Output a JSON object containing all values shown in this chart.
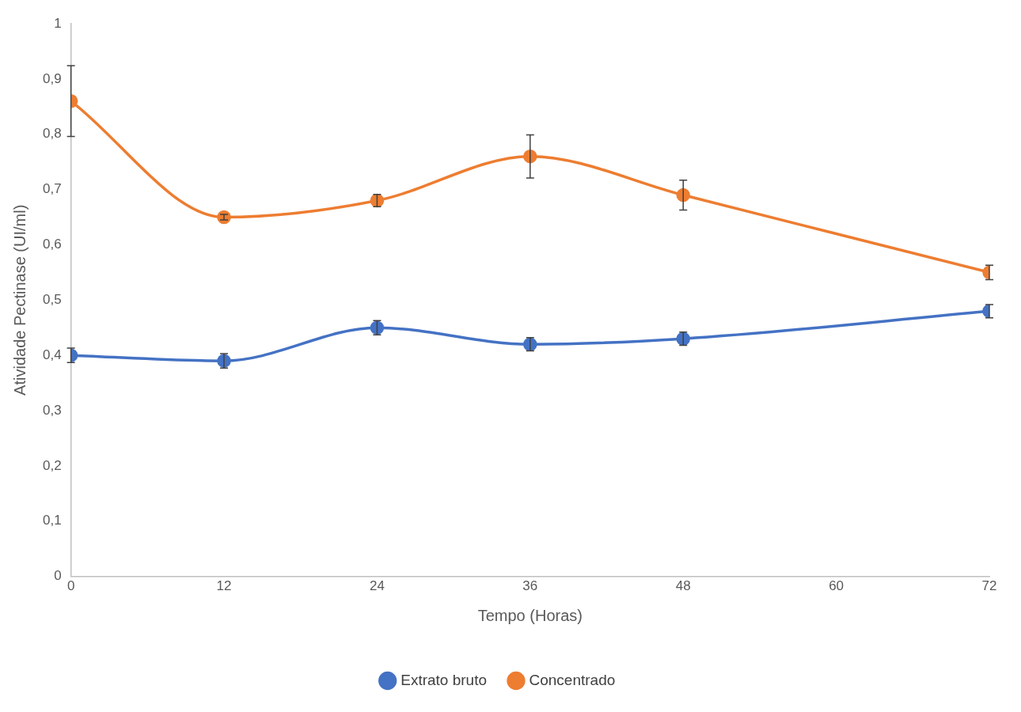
{
  "chart_data": {
    "type": "line",
    "xlabel": "Tempo (Horas)",
    "ylabel": "Atividade Pectinase (UI/ml)",
    "x": [
      0,
      12,
      24,
      36,
      48,
      72
    ],
    "series": [
      {
        "name": "Extrato bruto",
        "color": "#4472c4",
        "values": [
          0.4,
          0.39,
          0.45,
          0.42,
          0.43,
          0.48
        ],
        "errors": [
          0.013,
          0.013,
          0.013,
          0.012,
          0.012,
          0.012
        ]
      },
      {
        "name": "Concentrado",
        "color": "#ed7d31",
        "values": [
          0.86,
          0.65,
          0.68,
          0.76,
          0.69,
          0.55
        ],
        "errors": [
          0.064,
          0.005,
          0.011,
          0.039,
          0.027,
          0.013
        ]
      }
    ],
    "xlim": [
      0,
      72
    ],
    "xticks": [
      0,
      12,
      24,
      36,
      48,
      60,
      72
    ],
    "ylim": [
      0,
      1
    ],
    "yticks": [
      0,
      {
        "value": 0.1,
        "label": "0,1"
      },
      {
        "value": 0.2,
        "label": "0,2"
      },
      {
        "value": 0.3,
        "label": "0,3"
      },
      {
        "value": 0.4,
        "label": "0,4"
      },
      {
        "value": 0.5,
        "label": "0,5"
      },
      {
        "value": 0.6,
        "label": "0,6"
      },
      {
        "value": 0.7,
        "label": "0,7"
      },
      {
        "value": 0.8,
        "label": "0,8"
      },
      {
        "value": 0.9,
        "label": "0,9"
      },
      1
    ],
    "grid": false,
    "legend": "bottom",
    "marker": "circle",
    "line_style": "solid"
  }
}
